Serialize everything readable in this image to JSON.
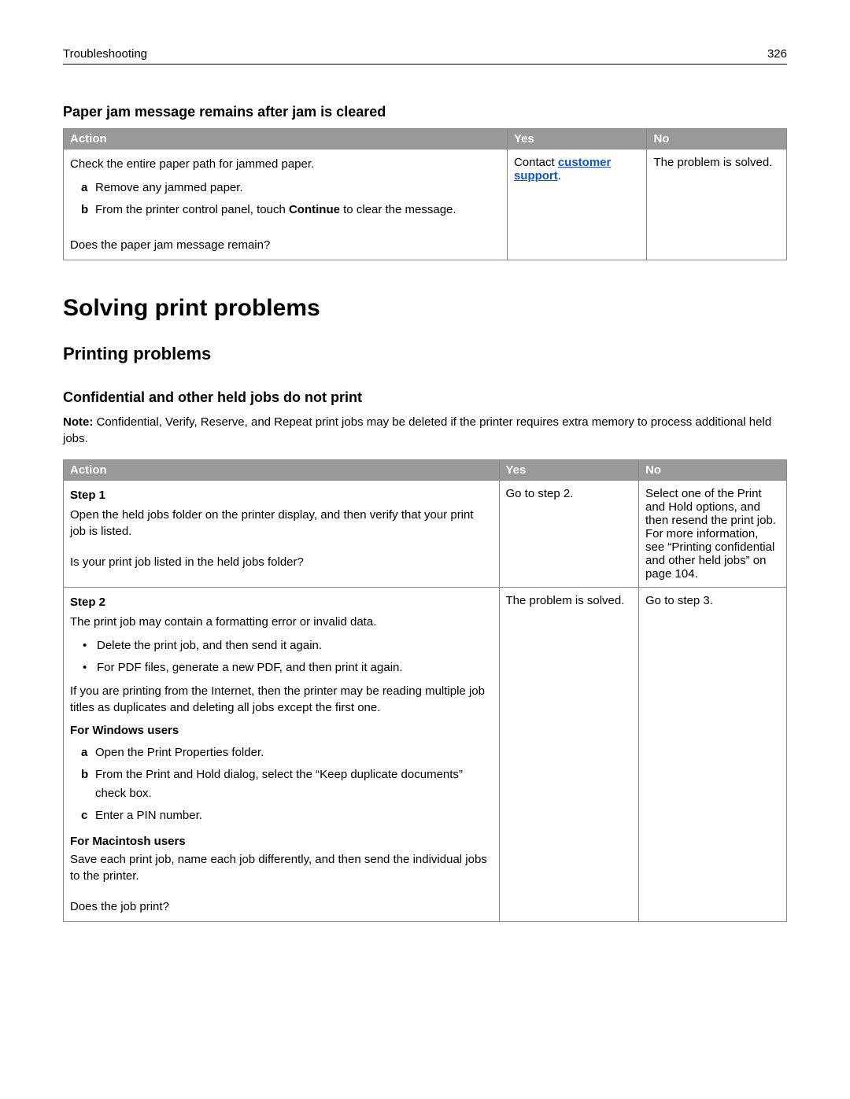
{
  "header": {
    "section": "Troubleshooting",
    "page": "326"
  },
  "section1": {
    "title": "Paper jam message remains after jam is cleared",
    "table": {
      "cols": [
        "Action",
        "Yes",
        "No"
      ],
      "row": {
        "intro": "Check the entire paper path for jammed paper.",
        "a": "Remove any jammed paper.",
        "b_prefix": "From the printer control panel, touch ",
        "b_bold": "Continue",
        "b_suffix": " to clear the message.",
        "question": "Does the paper jam message remain?",
        "yes_prefix": "Contact ",
        "yes_link": "customer support",
        "yes_suffix": ".",
        "no": "The problem is solved."
      }
    }
  },
  "h1": "Solving print problems",
  "h2": "Printing problems",
  "section2": {
    "title": "Confidential and other held jobs do not print",
    "note_label": "Note:",
    "note_text": " Confidential, Verify, Reserve, and Repeat print jobs may be deleted if the printer requires extra memory to process additional held jobs.",
    "table": {
      "cols": [
        "Action",
        "Yes",
        "No"
      ],
      "step1": {
        "label": "Step 1",
        "line1": "Open the held jobs folder on the printer display, and then verify that your print job is listed.",
        "question": "Is your print job listed in the held jobs folder?",
        "yes": "Go to step 2.",
        "no": "Select one of the Print and Hold options, and then resend the print job. For more information, see “Printing confidential and other held jobs” on page 104."
      },
      "step2": {
        "label": "Step 2",
        "line1": "The print job may contain a formatting error or invalid data.",
        "bullets": [
          "Delete the print job, and then send it again.",
          "For PDF files, generate a new PDF, and then print it again."
        ],
        "line2": "If you are printing from the Internet, then the printer may be reading multiple job titles as duplicates and deleting all jobs except the first one.",
        "win_head": "For Windows users",
        "win_a": "Open the Print Properties folder.",
        "win_b": "From the Print and Hold dialog, select the “Keep duplicate documents” check box.",
        "win_c": "Enter a PIN number.",
        "mac_head": "For Macintosh users",
        "mac_text": "Save each print job, name each job differently, and then send the individual jobs to the printer.",
        "question": "Does the job print?",
        "yes": "The problem is solved.",
        "no": "Go to step 3."
      }
    }
  },
  "markers": {
    "a": "a",
    "b": "b",
    "c": "c"
  },
  "colors": {
    "th_bg": "#999999",
    "th_fg": "#ffffff",
    "link": "#1155cc",
    "border": "#888888"
  }
}
